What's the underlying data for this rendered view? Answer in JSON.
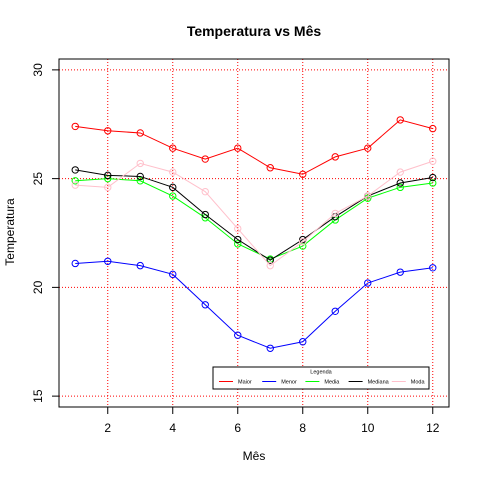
{
  "chart_data": {
    "type": "line",
    "title": "Temperatura vs Mês",
    "xlabel": "Mês",
    "ylabel": "Temperatura",
    "xlim": [
      0.5,
      12.5
    ],
    "ylim": [
      14.5,
      30.5
    ],
    "x_ticks": [
      2,
      4,
      6,
      8,
      10,
      12
    ],
    "y_ticks": [
      15,
      20,
      25,
      30
    ],
    "grid": true,
    "grid_color": "#ff0000",
    "legend_title": "Legenda",
    "legend_position": "bottom-right",
    "x": [
      1,
      2,
      3,
      4,
      5,
      6,
      7,
      8,
      9,
      10,
      11,
      12
    ],
    "series": [
      {
        "name": "Maior",
        "color": "#ff0000",
        "values": [
          27.4,
          27.2,
          27.1,
          26.4,
          25.9,
          26.4,
          25.5,
          25.2,
          26.0,
          26.4,
          27.7,
          27.3
        ]
      },
      {
        "name": "Menor",
        "color": "#0000ff",
        "values": [
          21.1,
          21.2,
          21.0,
          20.6,
          19.2,
          17.8,
          17.2,
          17.5,
          18.9,
          20.2,
          20.7,
          20.9
        ]
      },
      {
        "name": "Media",
        "color": "#00ff00",
        "values": [
          24.9,
          25.0,
          24.9,
          24.2,
          23.2,
          22.0,
          21.3,
          21.9,
          23.1,
          24.1,
          24.6,
          24.8
        ]
      },
      {
        "name": "Mediana",
        "color": "#000000",
        "values": [
          25.4,
          25.15,
          25.1,
          24.6,
          23.35,
          22.2,
          21.25,
          22.2,
          23.25,
          24.2,
          24.8,
          25.05
        ]
      },
      {
        "name": "Moda",
        "color": "#ffc0cb",
        "values": [
          24.7,
          24.6,
          25.7,
          25.3,
          24.4,
          22.7,
          21.0,
          22.1,
          23.4,
          24.2,
          25.3,
          25.8
        ]
      }
    ]
  }
}
